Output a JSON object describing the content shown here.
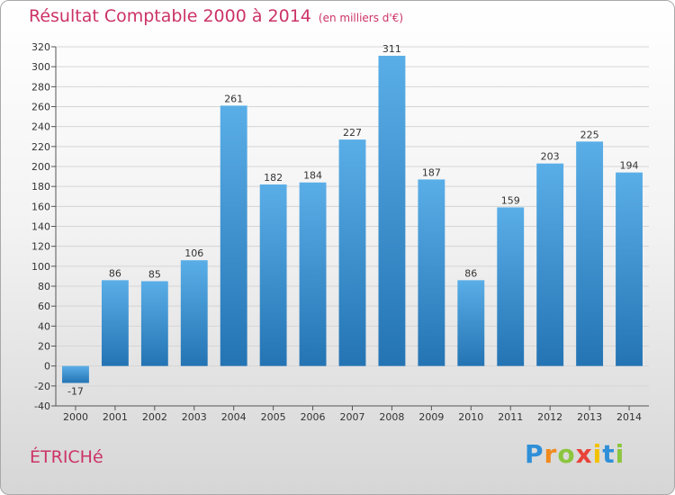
{
  "chart_data": {
    "type": "bar",
    "title": "Résultat Comptable 2000 à 2014",
    "subtitle": "(en milliers d'€)",
    "categories": [
      "2000",
      "2001",
      "2002",
      "2003",
      "2004",
      "2005",
      "2006",
      "2007",
      "2008",
      "2009",
      "2010",
      "2011",
      "2012",
      "2013",
      "2014"
    ],
    "values": [
      -17,
      86,
      85,
      106,
      261,
      182,
      184,
      227,
      311,
      187,
      86,
      159,
      203,
      225,
      194
    ],
    "data_labels": [
      "-17",
      "86",
      "85",
      "106",
      "261",
      "182",
      "184",
      "227",
      "311",
      "187",
      "86",
      "159",
      "203",
      "225",
      "194"
    ],
    "ylim": [
      -40,
      320
    ],
    "yticks": [
      -40,
      -20,
      0,
      20,
      40,
      60,
      80,
      100,
      120,
      140,
      160,
      180,
      200,
      220,
      240,
      260,
      280,
      300,
      320
    ],
    "ytick_labels": [
      "-40",
      "-20",
      "0",
      "20",
      "40",
      "60",
      "80",
      "100",
      "120",
      "140",
      "160",
      "180",
      "200",
      "220",
      "240",
      "260",
      "280",
      "300",
      "320"
    ],
    "xlabel": "",
    "ylabel": "",
    "grid": true,
    "legend": "none",
    "colors": {
      "bar_top": "#5aaee7",
      "bar_bottom": "#2474b4",
      "title": "#cc3366",
      "grid": "#d5d5d5"
    }
  },
  "commune": "ÉTRICHé",
  "brand": {
    "letters": [
      "P",
      "r",
      "o",
      "x",
      "i",
      "t",
      "i"
    ],
    "colors": [
      "#2f8fd8",
      "#f08a1c",
      "#8cc63e",
      "#e8433a",
      "#f2c200",
      "#2f8fd8",
      "#8cc63e"
    ]
  }
}
